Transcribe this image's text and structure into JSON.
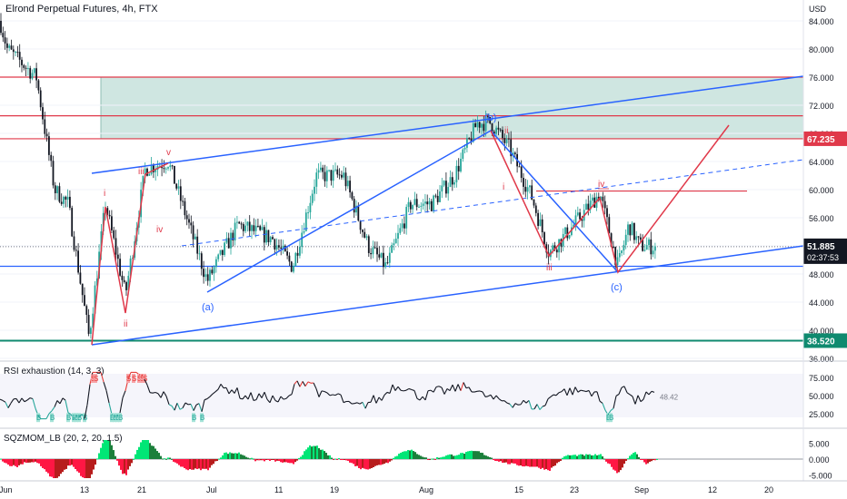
{
  "header": {
    "title": "Elrond Perpetual Futures, 4h, FTX"
  },
  "main_pane": {
    "currency": "USD",
    "y_ticks": [
      "84.000",
      "80.000",
      "76.000",
      "72.000",
      "68.000",
      "64.000",
      "60.000",
      "56.000",
      "52.000",
      "48.000",
      "44.000",
      "40.000",
      "36.000"
    ],
    "badges": {
      "resistance": {
        "value": "67.235",
        "color": "#e0394a"
      },
      "support": {
        "value": "38.520",
        "color": "#0f8a6f"
      },
      "last_price": {
        "value": "51.885",
        "countdown": "02:37:53"
      }
    },
    "wave_labels": {
      "primary": [
        "(a)",
        "(b)",
        "(c)"
      ],
      "left": [
        "i",
        "ii",
        "iii",
        "iv",
        "v"
      ],
      "right": [
        "i",
        "ii",
        "iii",
        "iv",
        "v"
      ]
    }
  },
  "rsi_pane": {
    "label": "RSI exhaustion (14, 3, 3)",
    "y_ticks": [
      "75.000",
      "50.000",
      "25.000"
    ],
    "last_value": "48.42",
    "markers": {
      "sell": "S",
      "buy": "B"
    }
  },
  "mom_pane": {
    "label": "SQZMOM_LB (20, 2, 20, 1.5)",
    "y_ticks": [
      "5.000",
      "0.000",
      "-5.000"
    ]
  },
  "x_axis": {
    "labels": [
      "Jun",
      "13",
      "21",
      "Jul",
      "11",
      "19",
      "Aug",
      "15",
      "23",
      "Sep",
      "12",
      "20"
    ]
  },
  "colors": {
    "up": "#26a69a",
    "down": "#131722",
    "zone": "#cfe6e1",
    "blue_line": "#2962ff",
    "red_line": "#e0394a",
    "teal_line": "#0f8a6f"
  },
  "chart_data": {
    "type": "candlestick",
    "title": "Elrond Perpetual Futures, 4h, FTX",
    "y_axis_unit": "USD",
    "ylim": [
      36,
      86
    ],
    "key_levels": [
      {
        "name": "resistance",
        "value": 67.235
      },
      {
        "name": "support",
        "value": 38.52
      },
      {
        "name": "last_price",
        "value": 51.885
      }
    ],
    "price_path": [
      {
        "x": "Jun",
        "price": 84
      },
      {
        "x": "Jun 13",
        "price": 39
      },
      {
        "x": "Jun 15",
        "price": 58
      },
      {
        "x": "Jun 17",
        "price": 45
      },
      {
        "x": "Jun 21",
        "price": 63
      },
      {
        "x": "Jul",
        "price": 47
      },
      {
        "x": "Jul 19",
        "price": 56
      },
      {
        "x": "Aug 9",
        "price": 69.5
      },
      {
        "x": "Aug 19",
        "price": 51
      },
      {
        "x": "Aug 25",
        "price": 59.5
      },
      {
        "x": "Aug 30",
        "price": 49
      },
      {
        "x": "Sep 2",
        "price": 51.885
      }
    ]
  }
}
